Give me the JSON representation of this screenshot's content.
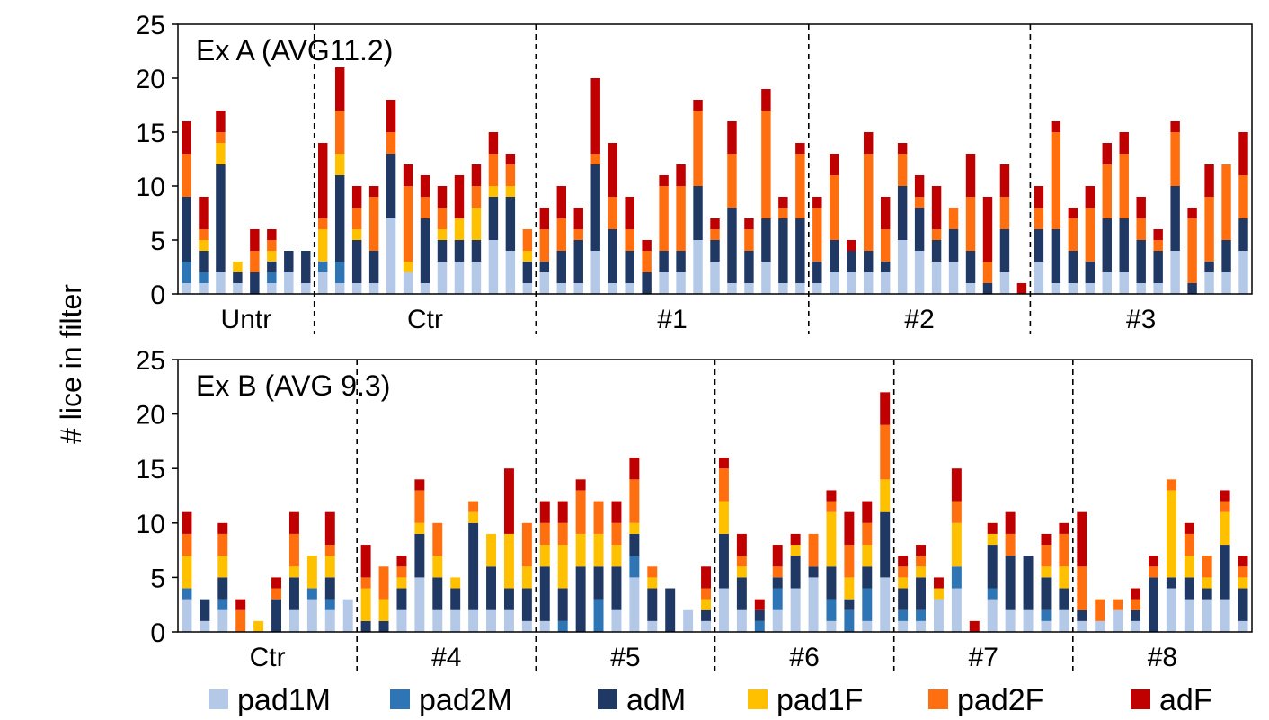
{
  "chart_data": {
    "type": "bar",
    "stacked": true,
    "ylabel": "# lice in filter",
    "ylim": [
      0,
      25
    ],
    "yticks": [
      0,
      5,
      10,
      15,
      20,
      25
    ],
    "grid": false,
    "legend_placement": "bottom",
    "series": [
      {
        "name": "pad1M",
        "color": "#b4c9e7"
      },
      {
        "name": "pad2M",
        "color": "#2e75b6"
      },
      {
        "name": "adM",
        "color": "#203864"
      },
      {
        "name": "pad1F",
        "color": "#ffc000"
      },
      {
        "name": "pad2F",
        "color": "#ff6f0f"
      },
      {
        "name": "adF",
        "color": "#c00000"
      }
    ],
    "panels": [
      {
        "title": "Ex A (AVG11.2)",
        "groups": [
          {
            "label": "Untr",
            "bars": [
              [
                1,
                2,
                6,
                0,
                4,
                3
              ],
              [
                1,
                1,
                2,
                1,
                1,
                3
              ],
              [
                2,
                0,
                10,
                2,
                1,
                2
              ],
              [
                1,
                0,
                1,
                1,
                0,
                0
              ],
              [
                0,
                0,
                2,
                0,
                2,
                2
              ],
              [
                1,
                1,
                1,
                1,
                1,
                1
              ],
              [
                2,
                0,
                2,
                0,
                0,
                0
              ],
              [
                1,
                0,
                3,
                0,
                0,
                0
              ]
            ]
          },
          {
            "label": "Ctr",
            "bars": [
              [
                2,
                1,
                0,
                3,
                1,
                7
              ],
              [
                1,
                2,
                8,
                2,
                4,
                4
              ],
              [
                1,
                0,
                4,
                1,
                2,
                2
              ],
              [
                1,
                0,
                3,
                0,
                5,
                1
              ],
              [
                7,
                0,
                6,
                0,
                2,
                3
              ],
              [
                2,
                0,
                0,
                1,
                7,
                2
              ],
              [
                1,
                0,
                6,
                0,
                2,
                2
              ],
              [
                3,
                0,
                2,
                1,
                2,
                2
              ],
              [
                3,
                0,
                2,
                2,
                0,
                4
              ],
              [
                3,
                0,
                2,
                3,
                2,
                2
              ],
              [
                5,
                0,
                4,
                1,
                3,
                2
              ],
              [
                4,
                0,
                5,
                1,
                2,
                1
              ],
              [
                1,
                0,
                2,
                1,
                2,
                0
              ]
            ]
          },
          {
            "label": "#1",
            "bars": [
              [
                2,
                0,
                1,
                0,
                3,
                2
              ],
              [
                1,
                0,
                3,
                0,
                3,
                3
              ],
              [
                1,
                0,
                4,
                0,
                1,
                2
              ],
              [
                4,
                0,
                8,
                0,
                1,
                7
              ],
              [
                1,
                0,
                5,
                0,
                3,
                5
              ],
              [
                1,
                0,
                3,
                0,
                2,
                3
              ],
              [
                0,
                0,
                2,
                0,
                2,
                1
              ],
              [
                2,
                0,
                2,
                0,
                6,
                1
              ],
              [
                2,
                0,
                2,
                0,
                6,
                2
              ],
              [
                5,
                0,
                5,
                0,
                7,
                1
              ],
              [
                3,
                0,
                2,
                0,
                1,
                1
              ],
              [
                1,
                0,
                7,
                0,
                5,
                3
              ],
              [
                1,
                0,
                3,
                0,
                2,
                1
              ],
              [
                3,
                0,
                4,
                0,
                10,
                2
              ],
              [
                1,
                0,
                6,
                0,
                1,
                1
              ],
              [
                1,
                0,
                6,
                0,
                6,
                1
              ]
            ]
          },
          {
            "label": "#2",
            "bars": [
              [
                1,
                0,
                2,
                0,
                5,
                1
              ],
              [
                2,
                0,
                3,
                0,
                6,
                2
              ],
              [
                2,
                0,
                2,
                0,
                0,
                1
              ],
              [
                2,
                0,
                2,
                0,
                9,
                2
              ],
              [
                2,
                0,
                1,
                0,
                3,
                3
              ],
              [
                5,
                0,
                5,
                0,
                3,
                1
              ],
              [
                4,
                0,
                4,
                0,
                1,
                2
              ],
              [
                3,
                0,
                2,
                0,
                1,
                4
              ],
              [
                3,
                0,
                3,
                0,
                2,
                0
              ],
              [
                1,
                0,
                3,
                0,
                5,
                4
              ],
              [
                0,
                0,
                1,
                0,
                2,
                6
              ],
              [
                2,
                0,
                4,
                0,
                3,
                3
              ],
              [
                0,
                0,
                0,
                0,
                0,
                1
              ]
            ]
          },
          {
            "label": "#3",
            "bars": [
              [
                3,
                0,
                3,
                0,
                2,
                2
              ],
              [
                1,
                0,
                5,
                0,
                9,
                1
              ],
              [
                1,
                0,
                3,
                0,
                3,
                1
              ],
              [
                1,
                0,
                2,
                0,
                5,
                2
              ],
              [
                2,
                0,
                5,
                0,
                5,
                2
              ],
              [
                2,
                0,
                5,
                0,
                6,
                2
              ],
              [
                1,
                0,
                4,
                0,
                2,
                2
              ],
              [
                1,
                0,
                3,
                0,
                1,
                1
              ],
              [
                4,
                0,
                6,
                0,
                5,
                1
              ],
              [
                0,
                0,
                1,
                0,
                6,
                1
              ],
              [
                2,
                0,
                1,
                0,
                6,
                3
              ],
              [
                2,
                0,
                3,
                0,
                7,
                0
              ],
              [
                4,
                0,
                3,
                0,
                4,
                4
              ]
            ]
          }
        ]
      },
      {
        "title": "Ex B (AVG 9.3)",
        "groups": [
          {
            "label": "Ctr",
            "bars": [
              [
                3,
                1,
                0,
                3,
                2,
                2
              ],
              [
                1,
                0,
                2,
                0,
                0,
                0
              ],
              [
                2,
                1,
                2,
                2,
                2,
                1
              ],
              [
                0,
                0,
                0,
                0,
                2,
                1
              ],
              [
                0,
                0,
                0,
                1,
                0,
                0
              ],
              [
                0,
                0,
                3,
                0,
                1,
                1
              ],
              [
                2,
                0,
                3,
                1,
                3,
                2
              ],
              [
                3,
                1,
                0,
                3,
                0,
                0
              ],
              [
                2,
                1,
                2,
                2,
                1,
                3
              ],
              [
                3,
                0,
                0,
                0,
                0,
                0
              ]
            ]
          },
          {
            "label": "#4",
            "bars": [
              [
                0,
                0,
                1,
                3,
                1,
                3
              ],
              [
                0,
                0,
                1,
                2,
                3,
                0
              ],
              [
                2,
                0,
                2,
                1,
                1,
                1
              ],
              [
                5,
                0,
                4,
                1,
                3,
                1
              ],
              [
                2,
                0,
                3,
                2,
                3,
                0
              ],
              [
                2,
                0,
                2,
                1,
                0,
                0
              ],
              [
                2,
                0,
                8,
                1,
                1,
                0
              ],
              [
                2,
                0,
                4,
                3,
                0,
                0
              ],
              [
                2,
                0,
                2,
                5,
                0,
                6
              ],
              [
                1,
                0,
                3,
                2,
                4,
                0
              ]
            ]
          },
          {
            "label": "#5",
            "bars": [
              [
                1,
                0,
                5,
                2,
                2,
                2
              ],
              [
                0,
                1,
                3,
                4,
                2,
                2
              ],
              [
                0,
                0,
                6,
                3,
                4,
                1
              ],
              [
                0,
                3,
                3,
                3,
                3,
                0
              ],
              [
                2,
                0,
                4,
                2,
                2,
                2
              ],
              [
                5,
                2,
                2,
                1,
                4,
                2
              ],
              [
                1,
                0,
                3,
                1,
                1,
                0
              ],
              [
                0,
                0,
                4,
                0,
                0,
                0
              ],
              [
                2,
                0,
                0,
                0,
                0,
                0
              ],
              [
                1,
                0,
                1,
                1,
                1,
                2
              ]
            ]
          },
          {
            "label": "#6",
            "bars": [
              [
                4,
                0,
                5,
                3,
                3,
                1
              ],
              [
                2,
                0,
                3,
                1,
                1,
                2
              ],
              [
                0,
                1,
                1,
                0,
                0,
                1
              ],
              [
                2,
                2,
                1,
                0,
                1,
                2
              ],
              [
                4,
                0,
                3,
                1,
                0,
                1
              ],
              [
                5,
                0,
                1,
                0,
                3,
                0
              ],
              [
                1,
                2,
                3,
                5,
                1,
                1
              ],
              [
                0,
                2,
                1,
                2,
                3,
                3
              ],
              [
                1,
                3,
                2,
                2,
                2,
                2
              ],
              [
                5,
                0,
                6,
                3,
                5,
                3
              ]
            ]
          },
          {
            "label": "#7",
            "bars": [
              [
                1,
                1,
                2,
                1,
                1,
                1
              ],
              [
                1,
                1,
                3,
                1,
                1,
                1
              ],
              [
                3,
                0,
                0,
                1,
                0,
                1
              ],
              [
                4,
                2,
                0,
                4,
                2,
                3
              ],
              [
                0,
                0,
                0,
                0,
                0,
                1
              ],
              [
                3,
                1,
                4,
                1,
                0,
                1
              ],
              [
                2,
                0,
                5,
                0,
                2,
                2
              ],
              [
                2,
                0,
                5,
                0,
                0,
                0
              ],
              [
                1,
                1,
                3,
                1,
                2,
                1
              ],
              [
                2,
                0,
                2,
                2,
                3,
                1
              ]
            ]
          },
          {
            "label": "#8",
            "bars": [
              [
                1,
                0,
                1,
                0,
                4,
                5
              ],
              [
                1,
                0,
                0,
                0,
                2,
                0
              ],
              [
                2,
                0,
                0,
                0,
                1,
                0
              ],
              [
                1,
                0,
                1,
                0,
                1,
                1
              ],
              [
                0,
                0,
                5,
                0,
                1,
                1
              ],
              [
                4,
                0,
                1,
                8,
                1,
                0
              ],
              [
                3,
                0,
                2,
                2,
                2,
                1
              ],
              [
                3,
                0,
                1,
                1,
                2,
                0
              ],
              [
                3,
                0,
                5,
                3,
                1,
                1
              ],
              [
                1,
                0,
                3,
                1,
                1,
                1
              ]
            ]
          }
        ]
      }
    ]
  }
}
